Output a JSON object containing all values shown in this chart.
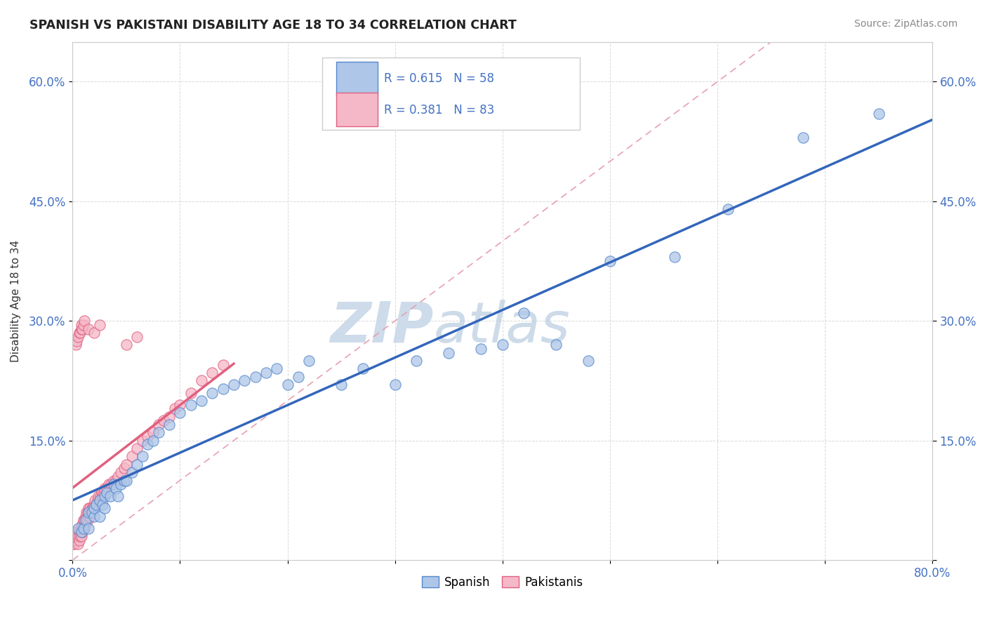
{
  "title": "SPANISH VS PAKISTANI DISABILITY AGE 18 TO 34 CORRELATION CHART",
  "source": "Source: ZipAtlas.com",
  "ylabel": "Disability Age 18 to 34",
  "xlim": [
    0.0,
    0.8
  ],
  "ylim": [
    0.0,
    0.65
  ],
  "xticks": [
    0.0,
    0.1,
    0.2,
    0.3,
    0.4,
    0.5,
    0.6,
    0.7,
    0.8
  ],
  "xticklabels": [
    "0.0%",
    "",
    "",
    "",
    "",
    "",
    "",
    "",
    "80.0%"
  ],
  "yticks": [
    0.0,
    0.15,
    0.3,
    0.45,
    0.6
  ],
  "yticklabels": [
    "",
    "15.0%",
    "30.0%",
    "45.0%",
    "60.0%"
  ],
  "spanish_R": 0.615,
  "spanish_N": 58,
  "pakistani_R": 0.381,
  "pakistani_N": 83,
  "spanish_color": "#aec6e8",
  "pakistani_color": "#f5b8c8",
  "spanish_edge_color": "#5588cc",
  "pakistani_edge_color": "#e06080",
  "spanish_line_color": "#3366bb",
  "pakistani_line_color": "#e06080",
  "diagonal_color": "#e8a0b0",
  "watermark_zip": "ZIP",
  "watermark_atlas": "atlas",
  "spanish_x": [
    0.005,
    0.008,
    0.01,
    0.012,
    0.015,
    0.015,
    0.018,
    0.02,
    0.02,
    0.022,
    0.025,
    0.025,
    0.028,
    0.03,
    0.03,
    0.032,
    0.035,
    0.038,
    0.04,
    0.042,
    0.045,
    0.048,
    0.05,
    0.055,
    0.06,
    0.065,
    0.07,
    0.075,
    0.08,
    0.09,
    0.1,
    0.11,
    0.12,
    0.13,
    0.14,
    0.15,
    0.16,
    0.17,
    0.18,
    0.19,
    0.2,
    0.21,
    0.22,
    0.25,
    0.27,
    0.3,
    0.32,
    0.35,
    0.38,
    0.4,
    0.42,
    0.45,
    0.48,
    0.5,
    0.56,
    0.61,
    0.68,
    0.75
  ],
  "spanish_y": [
    0.04,
    0.035,
    0.04,
    0.05,
    0.04,
    0.06,
    0.06,
    0.055,
    0.065,
    0.07,
    0.055,
    0.075,
    0.07,
    0.065,
    0.08,
    0.085,
    0.08,
    0.095,
    0.09,
    0.08,
    0.095,
    0.1,
    0.1,
    0.11,
    0.12,
    0.13,
    0.145,
    0.15,
    0.16,
    0.17,
    0.185,
    0.195,
    0.2,
    0.21,
    0.215,
    0.22,
    0.225,
    0.23,
    0.235,
    0.24,
    0.22,
    0.23,
    0.25,
    0.22,
    0.24,
    0.22,
    0.25,
    0.26,
    0.265,
    0.27,
    0.31,
    0.27,
    0.25,
    0.375,
    0.38,
    0.44,
    0.53,
    0.56
  ],
  "pakistani_x": [
    0.0,
    0.001,
    0.002,
    0.003,
    0.003,
    0.004,
    0.004,
    0.005,
    0.005,
    0.006,
    0.006,
    0.007,
    0.007,
    0.008,
    0.008,
    0.009,
    0.009,
    0.01,
    0.01,
    0.011,
    0.011,
    0.012,
    0.012,
    0.013,
    0.013,
    0.014,
    0.014,
    0.015,
    0.015,
    0.016,
    0.016,
    0.017,
    0.018,
    0.019,
    0.02,
    0.021,
    0.022,
    0.023,
    0.024,
    0.025,
    0.026,
    0.027,
    0.028,
    0.029,
    0.03,
    0.032,
    0.034,
    0.036,
    0.038,
    0.04,
    0.042,
    0.045,
    0.048,
    0.05,
    0.055,
    0.06,
    0.065,
    0.07,
    0.075,
    0.08,
    0.085,
    0.09,
    0.095,
    0.1,
    0.11,
    0.12,
    0.13,
    0.14,
    0.05,
    0.06,
    0.003,
    0.004,
    0.005,
    0.006,
    0.007,
    0.008,
    0.008,
    0.009,
    0.01,
    0.011,
    0.015,
    0.02,
    0.025
  ],
  "pakistani_y": [
    0.02,
    0.025,
    0.02,
    0.03,
    0.035,
    0.025,
    0.035,
    0.02,
    0.03,
    0.025,
    0.035,
    0.03,
    0.04,
    0.03,
    0.04,
    0.035,
    0.045,
    0.04,
    0.05,
    0.04,
    0.05,
    0.045,
    0.055,
    0.05,
    0.06,
    0.05,
    0.06,
    0.055,
    0.065,
    0.055,
    0.065,
    0.06,
    0.065,
    0.065,
    0.07,
    0.075,
    0.07,
    0.075,
    0.08,
    0.075,
    0.08,
    0.085,
    0.08,
    0.085,
    0.09,
    0.09,
    0.095,
    0.095,
    0.1,
    0.1,
    0.105,
    0.11,
    0.115,
    0.12,
    0.13,
    0.14,
    0.15,
    0.155,
    0.16,
    0.17,
    0.175,
    0.18,
    0.19,
    0.195,
    0.21,
    0.225,
    0.235,
    0.245,
    0.27,
    0.28,
    0.27,
    0.275,
    0.28,
    0.285,
    0.285,
    0.29,
    0.295,
    0.29,
    0.295,
    0.3,
    0.29,
    0.285,
    0.295
  ]
}
